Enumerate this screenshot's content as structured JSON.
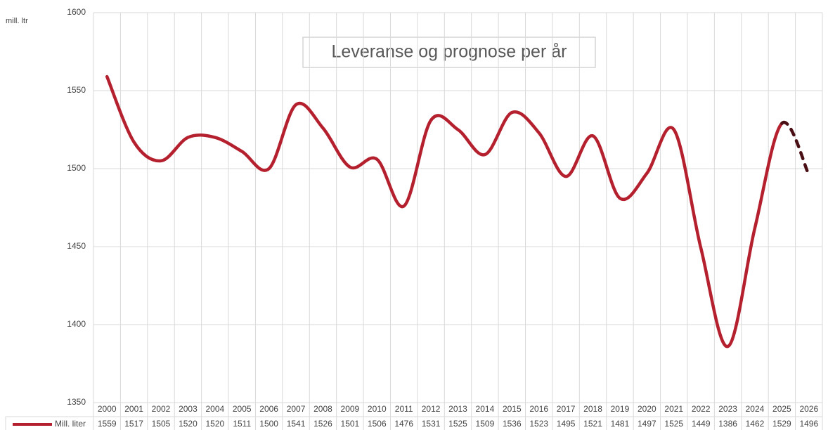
{
  "chart_data": {
    "type": "line",
    "title": "Leveranse og prognose per år",
    "y_label": "mill. ltr",
    "categories": [
      "2000",
      "2001",
      "2002",
      "2003",
      "2004",
      "2005",
      "2006",
      "2007",
      "2008",
      "2009",
      "2010",
      "2011",
      "2012",
      "2013",
      "2014",
      "2015",
      "2016",
      "2017",
      "2018",
      "2019",
      "2020",
      "2021",
      "2022",
      "2023",
      "2024",
      "2025",
      "2026"
    ],
    "series": [
      {
        "name": "Mill. liter",
        "color": "#b5202e",
        "forecast_color": "#4a0f14",
        "values": [
          1559,
          1517,
          1505,
          1520,
          1520,
          1511,
          1500,
          1541,
          1526,
          1501,
          1506,
          1476,
          1531,
          1525,
          1509,
          1536,
          1523,
          1495,
          1521,
          1481,
          1497,
          1525,
          1449,
          1386,
          1462,
          1529,
          1496
        ]
      }
    ],
    "ylim": [
      1350,
      1600
    ],
    "yticks": [
      1350,
      1400,
      1450,
      1500,
      1550,
      1600
    ],
    "grid": true,
    "data_table": true
  }
}
